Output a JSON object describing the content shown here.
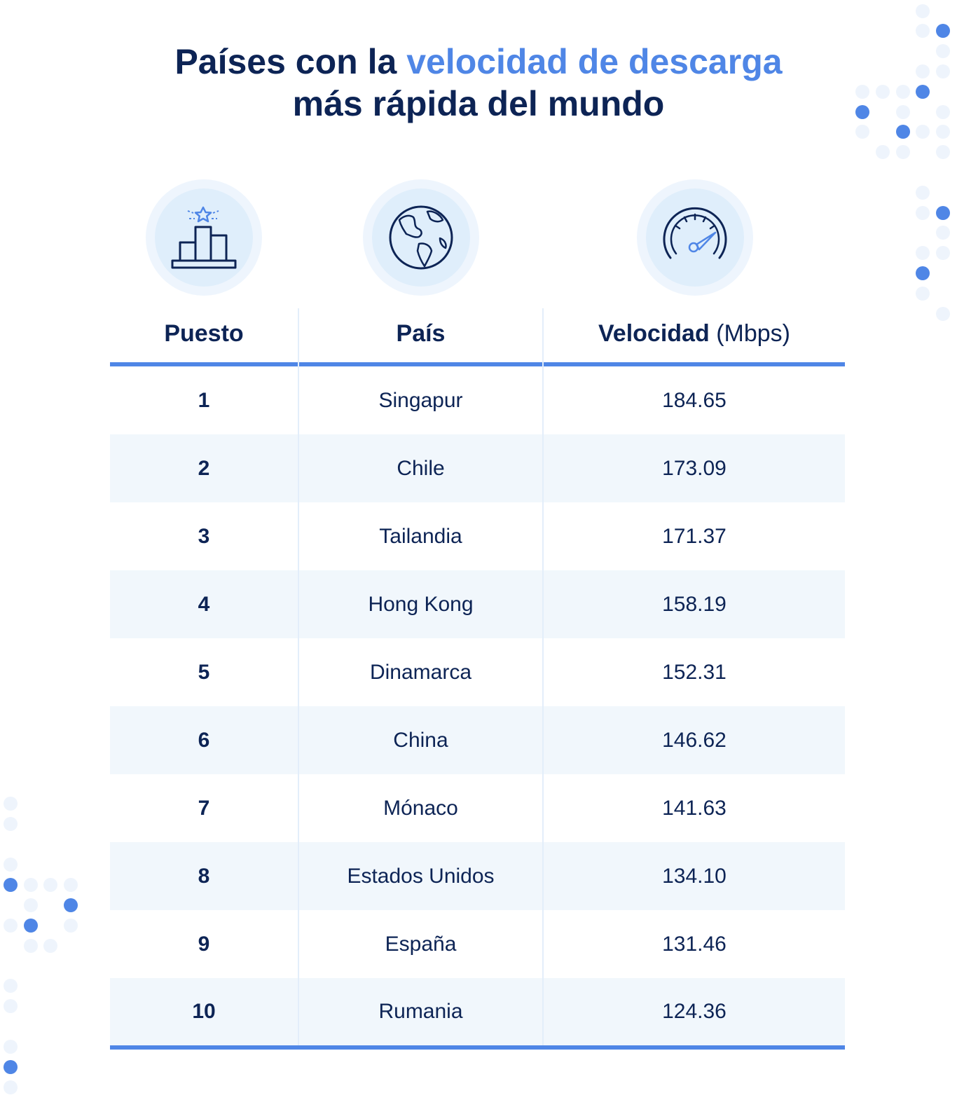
{
  "title": {
    "part1": "Países con la ",
    "highlight": "velocidad de descarga",
    "part2": "más rápida del mundo"
  },
  "icons": {
    "rank": "podium-star-icon",
    "country": "globe-icon",
    "speed": "speedometer-icon"
  },
  "chart_data": {
    "type": "table",
    "columns": [
      "Puesto",
      "País",
      "Velocidad (Mbps)"
    ],
    "header_speed_bold": "Velocidad",
    "header_speed_unit": "(Mbps)",
    "rows": [
      {
        "rank": "1",
        "country": "Singapur",
        "speed": "184.65"
      },
      {
        "rank": "2",
        "country": "Chile",
        "speed": "173.09"
      },
      {
        "rank": "3",
        "country": "Tailandia",
        "speed": "171.37"
      },
      {
        "rank": "4",
        "country": "Hong Kong",
        "speed": "158.19"
      },
      {
        "rank": "5",
        "country": "Dinamarca",
        "speed": "152.31"
      },
      {
        "rank": "6",
        "country": "China",
        "speed": "146.62"
      },
      {
        "rank": "7",
        "country": "Mónaco",
        "speed": "141.63"
      },
      {
        "rank": "8",
        "country": "Estados Unidos",
        "speed": "134.10"
      },
      {
        "rank": "9",
        "country": "España",
        "speed": "131.46"
      },
      {
        "rank": "10",
        "country": "Rumania",
        "speed": "124.36"
      }
    ]
  },
  "colors": {
    "navy": "#0d2455",
    "accent": "#4f86e6",
    "row_alt": "#f1f7fc",
    "dot_light": "#eef4fc"
  }
}
